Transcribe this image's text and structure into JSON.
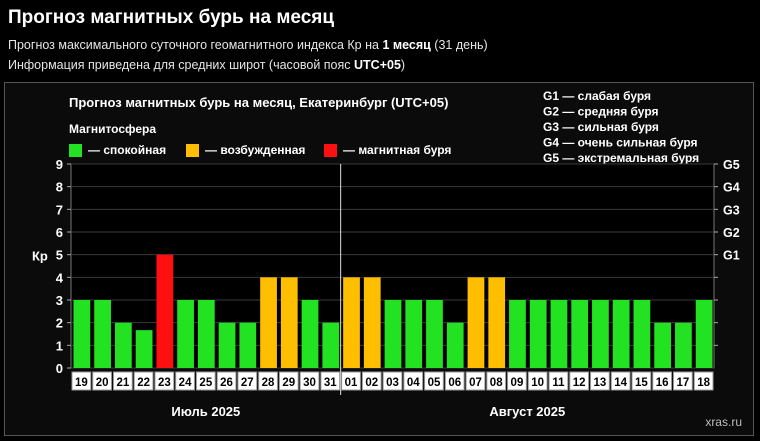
{
  "header": {
    "title": "Прогноз магнитных бурь на месяц",
    "line1_pre": "Прогноз максимального суточного геомагнитного индекса Кр на ",
    "line1_bold": "1 месяц",
    "line1_post": " (31 день)",
    "line2_pre": "Информация приведена для средних широт (часовой пояс ",
    "line2_bold": "UTC+05",
    "line2_post": ")"
  },
  "legend": {
    "group_title": "Магнитосфера",
    "items": [
      {
        "label": "— спокойная",
        "color": "#22e222"
      },
      {
        "label": "— возбужденная",
        "color": "#ffbf00"
      },
      {
        "label": "— магнитная буря",
        "color": "#ff1010"
      }
    ],
    "g_scale": [
      "G1 — слабая буря",
      "G2 — средняя буря",
      "G3 — сильная буря",
      "G4 — очень сильная буря",
      "G5 — экстремальная буря"
    ]
  },
  "watermark": "xras.ru",
  "chart_data": {
    "type": "bar",
    "title": "Прогноз магнитных бурь на месяц, Екатеринбург (UTC+05)",
    "ylabel": "Кр",
    "ylim": [
      0,
      9
    ],
    "yticks": [
      0,
      1,
      2,
      3,
      4,
      5,
      6,
      7,
      8,
      9
    ],
    "right_ticks": [
      {
        "value": 5,
        "label": "G1"
      },
      {
        "value": 6,
        "label": "G2"
      },
      {
        "value": 7,
        "label": "G3"
      },
      {
        "value": 8,
        "label": "G4"
      },
      {
        "value": 9,
        "label": "G5"
      }
    ],
    "categories": [
      "19",
      "20",
      "21",
      "22",
      "23",
      "24",
      "25",
      "26",
      "27",
      "28",
      "29",
      "30",
      "31",
      "01",
      "02",
      "03",
      "04",
      "05",
      "06",
      "07",
      "08",
      "09",
      "10",
      "11",
      "12",
      "13",
      "14",
      "15",
      "16",
      "17",
      "18"
    ],
    "values": [
      3,
      3,
      2,
      1.67,
      5,
      3,
      3,
      2,
      2,
      4,
      4,
      3,
      2,
      4,
      4,
      3,
      3,
      3,
      2,
      4,
      4,
      3,
      3,
      3,
      3,
      3,
      3,
      3,
      2,
      2,
      3
    ],
    "month_labels": [
      {
        "label": "Июль 2025",
        "from": 0,
        "to": 12
      },
      {
        "label": "Август 2025",
        "from": 13,
        "to": 30
      }
    ],
    "grid": true,
    "legend_position": "top-left"
  }
}
